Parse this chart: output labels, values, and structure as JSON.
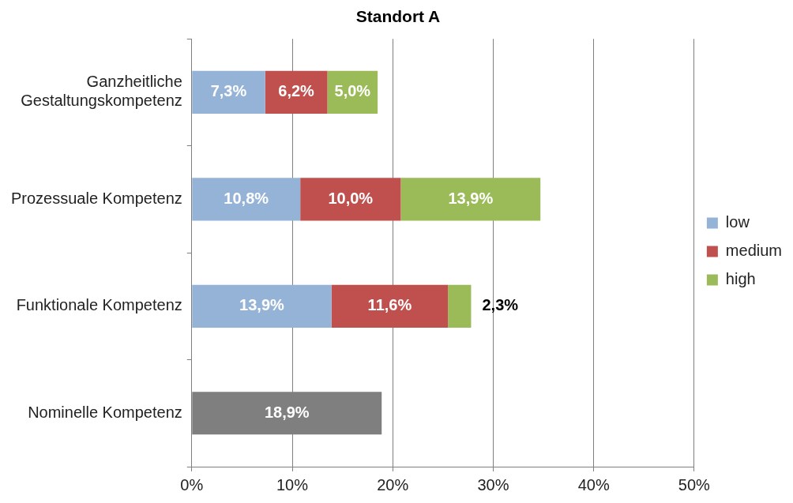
{
  "chart_data": {
    "type": "bar",
    "orientation": "horizontal",
    "stacked": true,
    "title": "Standort A",
    "categories": [
      "Ganzheitliche Gestaltungskompetenz",
      "Prozessuale Kompetenz",
      "Funktionale Kompetenz",
      "Nominelle Kompetenz"
    ],
    "series": [
      {
        "name": "low",
        "color": "#95b3d7",
        "values": [
          7.3,
          10.8,
          13.9,
          null
        ],
        "value_labels": [
          "7,3%",
          "10,8%",
          "13,9%",
          null
        ]
      },
      {
        "name": "medium",
        "color": "#c0504d",
        "values": [
          6.2,
          10.0,
          11.6,
          null
        ],
        "value_labels": [
          "6,2%",
          "10,0%",
          "11,6%",
          null
        ]
      },
      {
        "name": "high",
        "color": "#9bbb59",
        "values": [
          5.0,
          13.9,
          2.3,
          null
        ],
        "value_labels": [
          "5,0%",
          "13,9%",
          "2,3%",
          null
        ]
      },
      {
        "color": "#7f7f7f",
        "values": [
          null,
          null,
          null,
          18.9
        ],
        "value_labels": [
          null,
          null,
          null,
          "18,9%"
        ]
      }
    ],
    "xlim": [
      0,
      50
    ],
    "xticks": [
      {
        "value": 0,
        "label": "0%"
      },
      {
        "value": 10,
        "label": "10%"
      },
      {
        "value": 20,
        "label": "20%"
      },
      {
        "value": 30,
        "label": "30%"
      },
      {
        "value": 40,
        "label": "40%"
      },
      {
        "value": 50,
        "label": "50%"
      }
    ],
    "grid": "x",
    "legend": "right"
  }
}
